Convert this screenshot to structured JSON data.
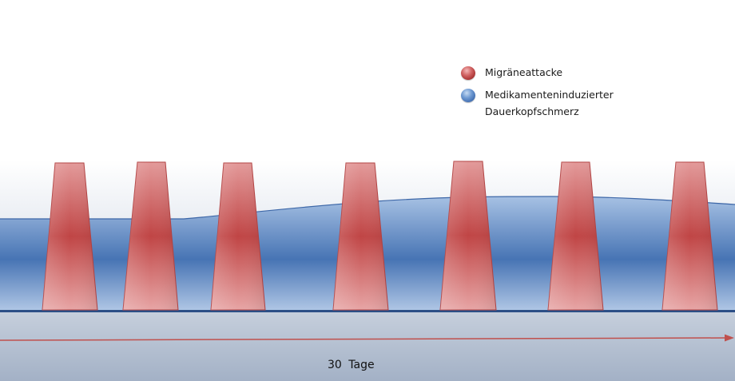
{
  "legend": {
    "items": [
      {
        "label": "Migräneattacke",
        "color": "#c0504d"
      },
      {
        "label": "Medikamenteninduzierter Dauerkopfschmerz",
        "color": "#4f81bd"
      }
    ]
  },
  "x_axis": {
    "label": "30 Tage"
  },
  "attacks": {
    "count": 7
  },
  "colors": {
    "attack": "#c0504d",
    "headache_band": "#4f81bd",
    "timeline_arrow": "#c0504d",
    "background_top": "#ffffff",
    "background_bottom": "#a9b7cc"
  }
}
